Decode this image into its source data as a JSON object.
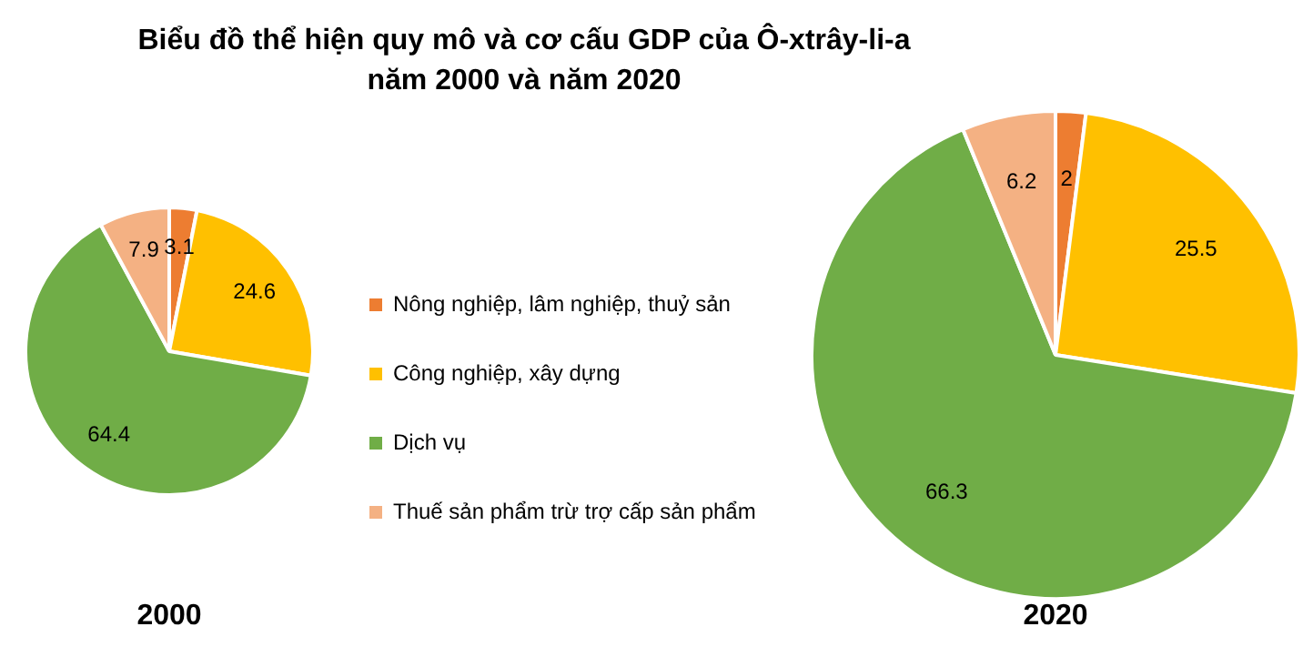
{
  "chart_data": [
    {
      "type": "pie",
      "title": "Biểu đồ thể hiện quy mô và cơ cấu GDP  của Ô-xtrây-li-a\nnăm 2000 và năm 2020",
      "xlabel": "2000",
      "legend": "right",
      "data_labels": true,
      "categories": [
        "Nông nghiệp, lâm nghiệp, thuỷ sản",
        "Công nghiệp, xây dựng",
        "Dịch vụ",
        "Thuế sản phẩm trừ trợ cấp sản phẩm"
      ],
      "values": [
        3.1,
        24.6,
        64.4,
        7.9
      ],
      "colors": [
        "#ed7d31",
        "#ffc000",
        "#70ad47",
        "#f4b183"
      ]
    },
    {
      "type": "pie",
      "xlabel": "2020",
      "data_labels": true,
      "values": [
        2,
        25.5,
        66.3,
        6.2
      ],
      "colors": [
        "#ed7d31",
        "#ffc000",
        "#70ad47",
        "#f4b183"
      ]
    }
  ]
}
